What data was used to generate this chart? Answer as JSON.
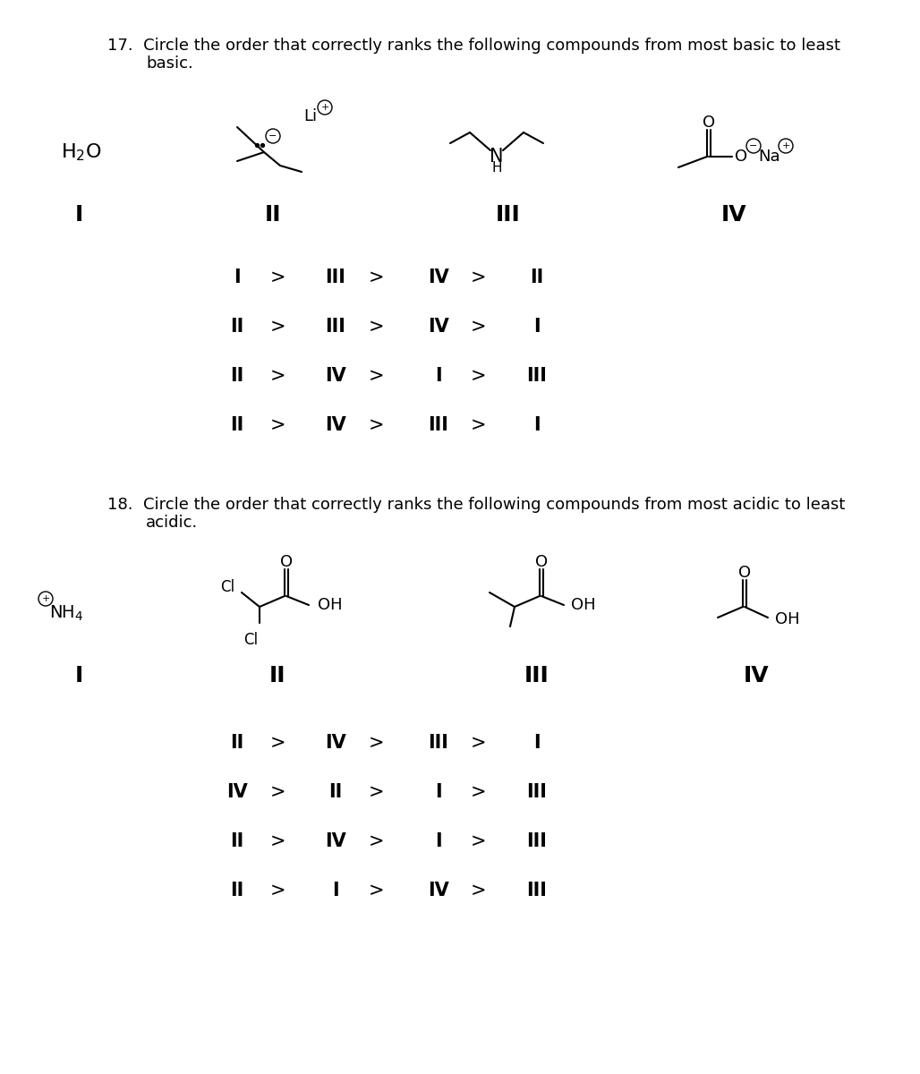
{
  "bg_color": "#ffffff",
  "q17_header1": "17.  Circle the order that correctly ranks the following compounds from most basic to least",
  "q17_header2": "basic.",
  "q17_answers": [
    [
      "I",
      ">",
      "III",
      ">",
      "IV",
      ">",
      "II"
    ],
    [
      "II",
      ">",
      "III",
      ">",
      "IV",
      ">",
      "I"
    ],
    [
      "II",
      ">",
      "IV",
      ">",
      "I",
      ">",
      "III"
    ],
    [
      "II",
      ">",
      "IV",
      ">",
      "III",
      ">",
      "I"
    ]
  ],
  "q18_header1": "18.  Circle the order that correctly ranks the following compounds from most acidic to least",
  "q18_header2": "acidic.",
  "q18_answers": [
    [
      "II",
      ">",
      "IV",
      ">",
      "III",
      ">",
      "I"
    ],
    [
      "IV",
      ">",
      "II",
      ">",
      "I",
      ">",
      "III"
    ],
    [
      "II",
      ">",
      "IV",
      ">",
      "I",
      ">",
      "III"
    ],
    [
      "II",
      ">",
      "I",
      ">",
      "IV",
      ">",
      "III"
    ]
  ],
  "font_header": 13,
  "font_label": 18,
  "font_answer": 15
}
